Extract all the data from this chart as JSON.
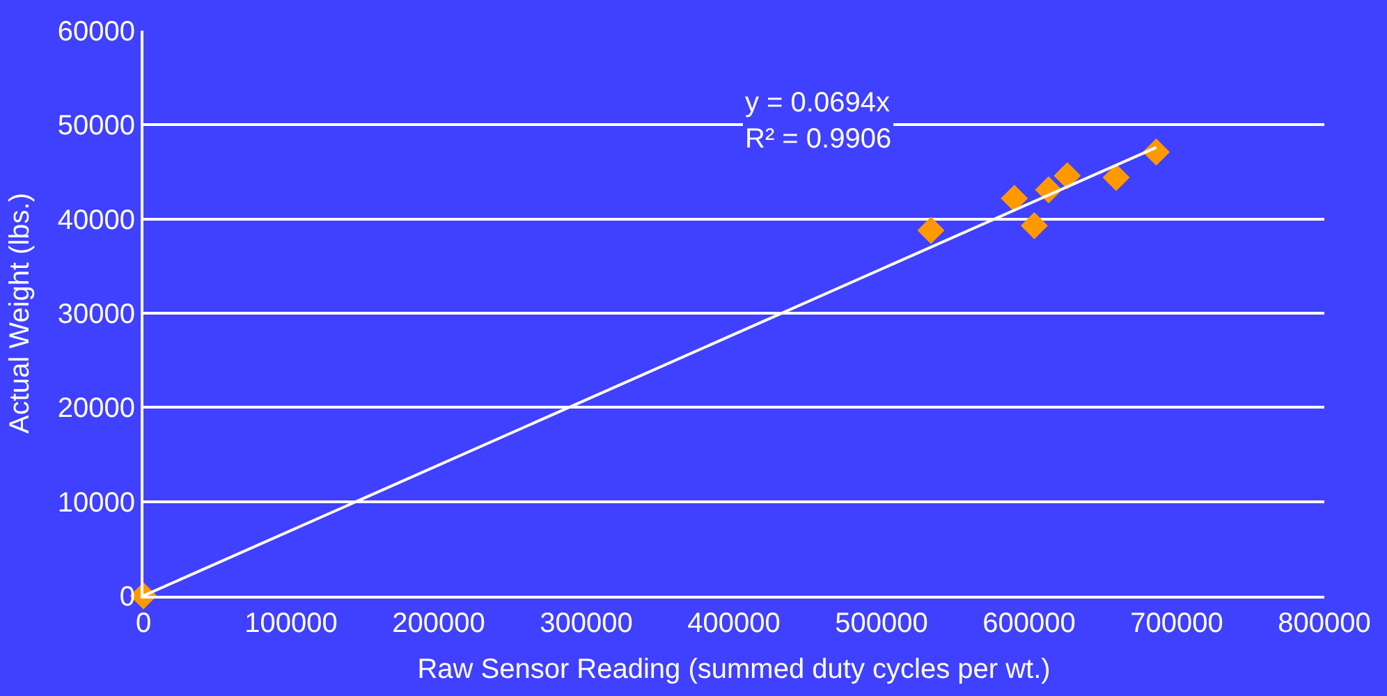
{
  "chart_data": {
    "type": "scatter",
    "xlabel": "Raw Sensor Reading (summed duty cycles per wt.)",
    "ylabel": "Actual Weight (lbs.)",
    "series": [
      {
        "color": "#ff9900",
        "marker": "diamond",
        "x": [
          0,
          533500,
          590000,
          603500,
          613200,
          625900,
          659000,
          686100
        ],
        "values": [
          0,
          38800,
          42200,
          39300,
          43100,
          44600,
          44400,
          47100
        ]
      },
      {
        "type": "line",
        "color": "#ffffff",
        "marker": "none",
        "line_style": "solid",
        "x": [
          0,
          686100
        ],
        "values": [
          0,
          47600
        ]
      }
    ],
    "annotations": [
      "y = 0.0694x\nR² = 0.9906"
    ],
    "xlim": [
      0,
      800000
    ],
    "ylim": [
      0,
      60000
    ],
    "xticks": [
      0,
      100000,
      200000,
      300000,
      400000,
      500000,
      600000,
      700000,
      800000
    ],
    "yticks": [
      0,
      10000,
      20000,
      30000,
      40000,
      50000,
      60000
    ],
    "grid": "y",
    "legend": false
  }
}
